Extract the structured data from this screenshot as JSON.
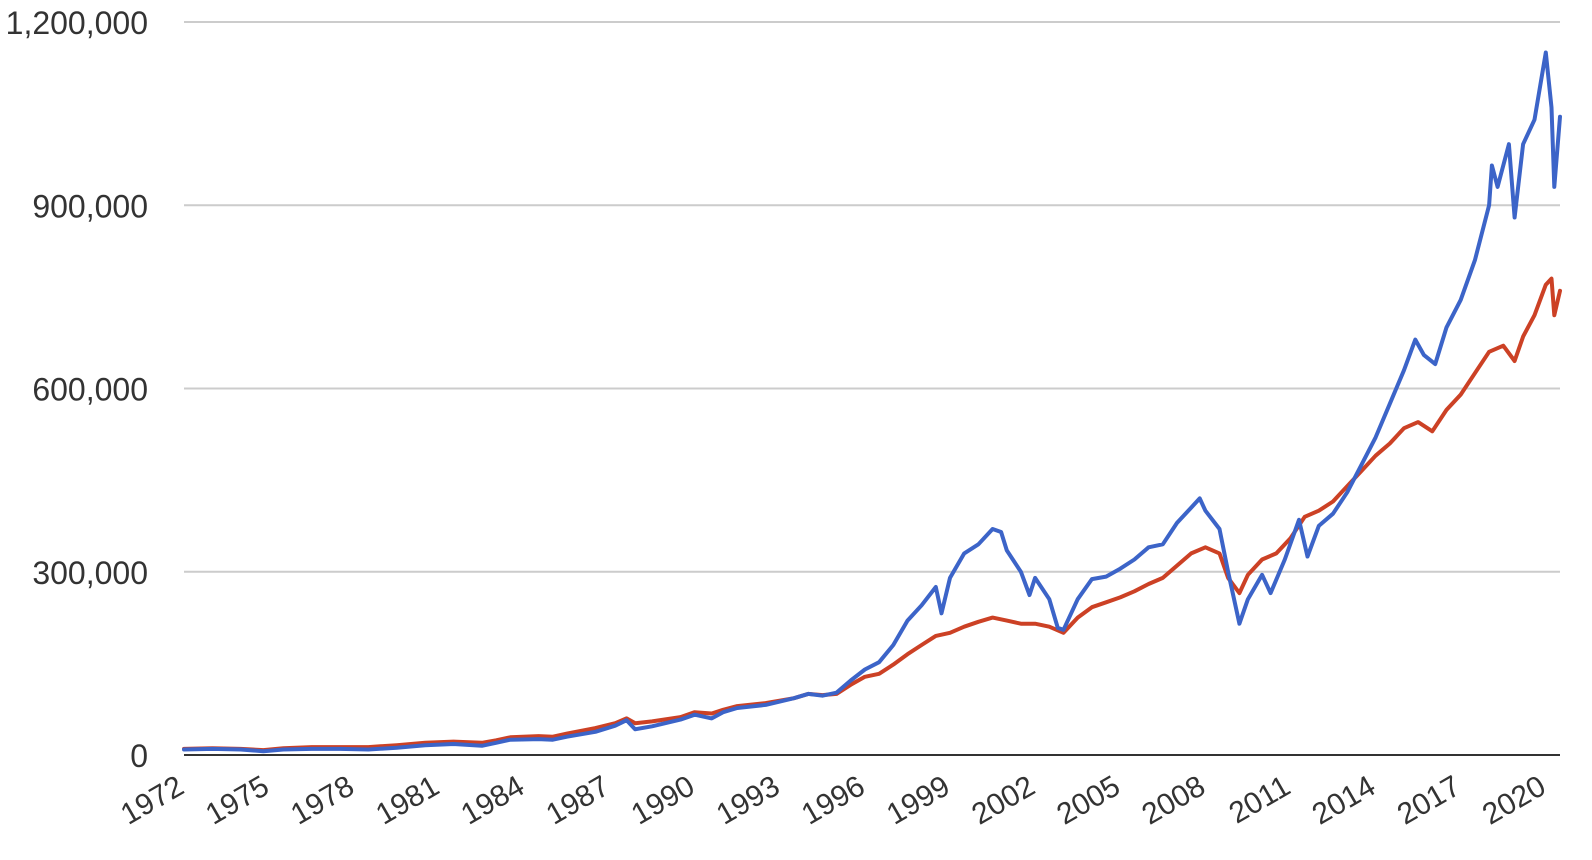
{
  "chart_data": {
    "type": "line",
    "title": "",
    "xlabel": "",
    "ylabel": "",
    "xlim": [
      1972,
      2020.5
    ],
    "ylim": [
      0,
      1200000
    ],
    "grid": true,
    "legend": "none",
    "y_ticks": [
      {
        "value": 0,
        "label": "0"
      },
      {
        "value": 300000,
        "label": "300,000"
      },
      {
        "value": 600000,
        "label": "600,000"
      },
      {
        "value": 900000,
        "label": "900,000"
      },
      {
        "value": 1200000,
        "label": "1,200,000"
      }
    ],
    "x_ticks": [
      {
        "value": 1972,
        "label": "1972"
      },
      {
        "value": 1975,
        "label": "1975"
      },
      {
        "value": 1978,
        "label": "1978"
      },
      {
        "value": 1981,
        "label": "1981"
      },
      {
        "value": 1984,
        "label": "1984"
      },
      {
        "value": 1987,
        "label": "1987"
      },
      {
        "value": 1990,
        "label": "1990"
      },
      {
        "value": 1993,
        "label": "1993"
      },
      {
        "value": 1996,
        "label": "1996"
      },
      {
        "value": 1999,
        "label": "1999"
      },
      {
        "value": 2002,
        "label": "2002"
      },
      {
        "value": 2005,
        "label": "2005"
      },
      {
        "value": 2008,
        "label": "2008"
      },
      {
        "value": 2011,
        "label": "2011"
      },
      {
        "value": 2014,
        "label": "2014"
      },
      {
        "value": 2017,
        "label": "2017"
      },
      {
        "value": 2020,
        "label": "2020"
      }
    ],
    "series": [
      {
        "color": "#3c64c8",
        "points": [
          [
            1972.0,
            9000
          ],
          [
            1973.0,
            10000
          ],
          [
            1974.0,
            9000
          ],
          [
            1974.8,
            6000
          ],
          [
            1975.5,
            9000
          ],
          [
            1976.5,
            10000
          ],
          [
            1977.5,
            10000
          ],
          [
            1978.5,
            9000
          ],
          [
            1979.5,
            12000
          ],
          [
            1980.5,
            16000
          ],
          [
            1981.5,
            18000
          ],
          [
            1982.5,
            15000
          ],
          [
            1983.0,
            20000
          ],
          [
            1983.5,
            25000
          ],
          [
            1984.5,
            26000
          ],
          [
            1985.0,
            25000
          ],
          [
            1985.5,
            30000
          ],
          [
            1986.5,
            38000
          ],
          [
            1987.2,
            48000
          ],
          [
            1987.6,
            57000
          ],
          [
            1987.9,
            42000
          ],
          [
            1988.5,
            47000
          ],
          [
            1989.5,
            58000
          ],
          [
            1990.0,
            66000
          ],
          [
            1990.6,
            60000
          ],
          [
            1991.0,
            70000
          ],
          [
            1991.5,
            77000
          ],
          [
            1992.5,
            82000
          ],
          [
            1993.5,
            93000
          ],
          [
            1994.0,
            100000
          ],
          [
            1994.5,
            97000
          ],
          [
            1995.0,
            102000
          ],
          [
            1995.5,
            122000
          ],
          [
            1996.0,
            140000
          ],
          [
            1996.5,
            152000
          ],
          [
            1997.0,
            180000
          ],
          [
            1997.5,
            220000
          ],
          [
            1998.0,
            245000
          ],
          [
            1998.5,
            275000
          ],
          [
            1998.7,
            232000
          ],
          [
            1999.0,
            290000
          ],
          [
            1999.5,
            330000
          ],
          [
            2000.0,
            345000
          ],
          [
            2000.5,
            370000
          ],
          [
            2000.8,
            365000
          ],
          [
            2001.0,
            335000
          ],
          [
            2001.5,
            300000
          ],
          [
            2001.8,
            262000
          ],
          [
            2002.0,
            290000
          ],
          [
            2002.5,
            255000
          ],
          [
            2002.8,
            208000
          ],
          [
            2003.0,
            205000
          ],
          [
            2003.5,
            255000
          ],
          [
            2004.0,
            288000
          ],
          [
            2004.5,
            292000
          ],
          [
            2005.0,
            305000
          ],
          [
            2005.5,
            320000
          ],
          [
            2006.0,
            340000
          ],
          [
            2006.5,
            345000
          ],
          [
            2007.0,
            380000
          ],
          [
            2007.5,
            405000
          ],
          [
            2007.8,
            420000
          ],
          [
            2008.0,
            400000
          ],
          [
            2008.5,
            370000
          ],
          [
            2008.8,
            300000
          ],
          [
            2009.2,
            215000
          ],
          [
            2009.5,
            255000
          ],
          [
            2010.0,
            295000
          ],
          [
            2010.3,
            265000
          ],
          [
            2010.8,
            320000
          ],
          [
            2011.3,
            385000
          ],
          [
            2011.6,
            325000
          ],
          [
            2012.0,
            375000
          ],
          [
            2012.5,
            395000
          ],
          [
            2013.0,
            430000
          ],
          [
            2013.5,
            475000
          ],
          [
            2014.0,
            520000
          ],
          [
            2014.5,
            575000
          ],
          [
            2015.0,
            630000
          ],
          [
            2015.4,
            680000
          ],
          [
            2015.7,
            655000
          ],
          [
            2016.1,
            640000
          ],
          [
            2016.5,
            700000
          ],
          [
            2017.0,
            745000
          ],
          [
            2017.5,
            810000
          ],
          [
            2018.0,
            900000
          ],
          [
            2018.1,
            965000
          ],
          [
            2018.3,
            930000
          ],
          [
            2018.7,
            1000000
          ],
          [
            2018.9,
            880000
          ],
          [
            2019.2,
            1000000
          ],
          [
            2019.6,
            1040000
          ],
          [
            2020.0,
            1150000
          ],
          [
            2020.2,
            1060000
          ],
          [
            2020.3,
            930000
          ],
          [
            2020.5,
            1045000
          ]
        ]
      },
      {
        "color": "#cc4125",
        "points": [
          [
            1972.0,
            10000
          ],
          [
            1973.0,
            11000
          ],
          [
            1974.0,
            10000
          ],
          [
            1974.8,
            8000
          ],
          [
            1975.5,
            11000
          ],
          [
            1976.5,
            13000
          ],
          [
            1977.5,
            13000
          ],
          [
            1978.5,
            13000
          ],
          [
            1979.5,
            16000
          ],
          [
            1980.5,
            20000
          ],
          [
            1981.5,
            22000
          ],
          [
            1982.5,
            20000
          ],
          [
            1983.0,
            24000
          ],
          [
            1983.5,
            29000
          ],
          [
            1984.5,
            31000
          ],
          [
            1985.0,
            30000
          ],
          [
            1985.5,
            35000
          ],
          [
            1986.5,
            44000
          ],
          [
            1987.2,
            52000
          ],
          [
            1987.6,
            60000
          ],
          [
            1987.9,
            52000
          ],
          [
            1988.5,
            55000
          ],
          [
            1989.5,
            62000
          ],
          [
            1990.0,
            70000
          ],
          [
            1990.6,
            68000
          ],
          [
            1991.0,
            74000
          ],
          [
            1991.5,
            80000
          ],
          [
            1992.5,
            85000
          ],
          [
            1993.5,
            93000
          ],
          [
            1994.0,
            100000
          ],
          [
            1994.5,
            98000
          ],
          [
            1995.0,
            100000
          ],
          [
            1995.5,
            115000
          ],
          [
            1996.0,
            128000
          ],
          [
            1996.5,
            133000
          ],
          [
            1997.0,
            148000
          ],
          [
            1997.5,
            165000
          ],
          [
            1998.0,
            180000
          ],
          [
            1998.5,
            195000
          ],
          [
            1999.0,
            200000
          ],
          [
            1999.5,
            210000
          ],
          [
            2000.0,
            218000
          ],
          [
            2000.5,
            225000
          ],
          [
            2001.0,
            220000
          ],
          [
            2001.5,
            215000
          ],
          [
            2002.0,
            215000
          ],
          [
            2002.5,
            210000
          ],
          [
            2003.0,
            200000
          ],
          [
            2003.5,
            225000
          ],
          [
            2004.0,
            242000
          ],
          [
            2004.5,
            250000
          ],
          [
            2005.0,
            258000
          ],
          [
            2005.5,
            268000
          ],
          [
            2006.0,
            280000
          ],
          [
            2006.5,
            290000
          ],
          [
            2007.0,
            310000
          ],
          [
            2007.5,
            330000
          ],
          [
            2008.0,
            340000
          ],
          [
            2008.5,
            330000
          ],
          [
            2008.8,
            290000
          ],
          [
            2009.2,
            265000
          ],
          [
            2009.5,
            295000
          ],
          [
            2010.0,
            320000
          ],
          [
            2010.5,
            330000
          ],
          [
            2011.0,
            355000
          ],
          [
            2011.5,
            390000
          ],
          [
            2012.0,
            400000
          ],
          [
            2012.5,
            415000
          ],
          [
            2013.0,
            440000
          ],
          [
            2013.5,
            465000
          ],
          [
            2014.0,
            490000
          ],
          [
            2014.5,
            510000
          ],
          [
            2015.0,
            535000
          ],
          [
            2015.5,
            545000
          ],
          [
            2016.0,
            530000
          ],
          [
            2016.5,
            565000
          ],
          [
            2017.0,
            590000
          ],
          [
            2017.5,
            625000
          ],
          [
            2018.0,
            660000
          ],
          [
            2018.5,
            670000
          ],
          [
            2018.9,
            645000
          ],
          [
            2019.2,
            685000
          ],
          [
            2019.6,
            720000
          ],
          [
            2020.0,
            770000
          ],
          [
            2020.2,
            780000
          ],
          [
            2020.3,
            720000
          ],
          [
            2020.5,
            760000
          ]
        ]
      }
    ]
  }
}
